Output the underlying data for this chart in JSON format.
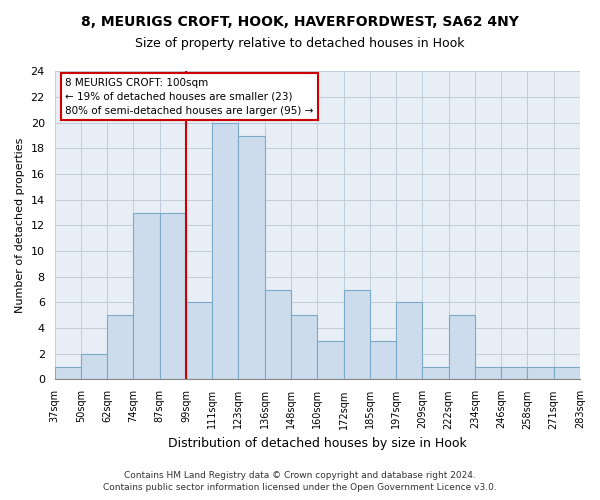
{
  "title": "8, MEURIGS CROFT, HOOK, HAVERFORDWEST, SA62 4NY",
  "subtitle": "Size of property relative to detached houses in Hook",
  "xlabel": "Distribution of detached houses by size in Hook",
  "ylabel": "Number of detached properties",
  "bin_labels": [
    "37sqm",
    "50sqm",
    "62sqm",
    "74sqm",
    "87sqm",
    "99sqm",
    "111sqm",
    "123sqm",
    "136sqm",
    "148sqm",
    "160sqm",
    "172sqm",
    "185sqm",
    "197sqm",
    "209sqm",
    "222sqm",
    "234sqm",
    "246sqm",
    "258sqm",
    "271sqm",
    "283sqm"
  ],
  "bin_values": [
    1,
    2,
    5,
    13,
    13,
    6,
    20,
    19,
    7,
    5,
    3,
    7,
    3,
    6,
    1,
    5,
    1,
    1,
    1,
    1
  ],
  "bar_color": "#ccdcec",
  "bar_edge_color": "#7aaac8",
  "vline_x_idx": 5,
  "vline_color": "#cc0000",
  "annotation_title": "8 MEURIGS CROFT: 100sqm",
  "annotation_line1": "← 19% of detached houses are smaller (23)",
  "annotation_line2": "80% of semi-detached houses are larger (95) →",
  "annotation_box_color": "#ffffff",
  "annotation_box_edge": "#cc0000",
  "ylim": [
    0,
    24
  ],
  "yticks": [
    0,
    2,
    4,
    6,
    8,
    10,
    12,
    14,
    16,
    18,
    20,
    22,
    24
  ],
  "footer1": "Contains HM Land Registry data © Crown copyright and database right 2024.",
  "footer2": "Contains public sector information licensed under the Open Government Licence v3.0.",
  "bg_color": "#e8eef5",
  "outer_bg": "#ffffff",
  "grid_color": "#c0ccd8"
}
